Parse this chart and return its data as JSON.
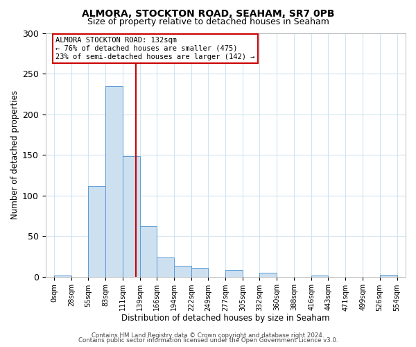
{
  "title_line1": "ALMORA, STOCKTON ROAD, SEAHAM, SR7 0PB",
  "title_line2": "Size of property relative to detached houses in Seaham",
  "xlabel": "Distribution of detached houses by size in Seaham",
  "ylabel": "Number of detached properties",
  "bar_edges": [
    0,
    28,
    55,
    83,
    111,
    139,
    166,
    194,
    222,
    249,
    277,
    305,
    332,
    360,
    388,
    416,
    443,
    471,
    499,
    526,
    554
  ],
  "bar_heights": [
    1,
    0,
    112,
    235,
    148,
    62,
    24,
    13,
    11,
    0,
    8,
    0,
    5,
    0,
    0,
    1,
    0,
    0,
    0,
    2
  ],
  "bar_color": "#cce0f0",
  "bar_edge_color": "#5b9bd5",
  "vline_x": 132,
  "vline_color": "#cc0000",
  "ylim": [
    0,
    300
  ],
  "yticks": [
    0,
    50,
    100,
    150,
    200,
    250,
    300
  ],
  "annotation_text": "ALMORA STOCKTON ROAD: 132sqm\n← 76% of detached houses are smaller (475)\n23% of semi-detached houses are larger (142) →",
  "annotation_box_color": "#ffffff",
  "annotation_box_edge_color": "#cc0000",
  "footer_line1": "Contains HM Land Registry data © Crown copyright and database right 2024.",
  "footer_line2": "Contains public sector information licensed under the Open Government Licence v3.0.",
  "background_color": "#ffffff",
  "grid_color": "#d0e4f0"
}
